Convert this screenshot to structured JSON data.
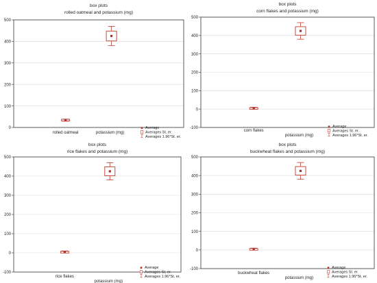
{
  "chart_data": [
    {
      "type": "box",
      "title": "box plots",
      "subtitle": "rolled oatmeal and potassium (mg)",
      "categories": [
        "rolled oatmeal",
        "potassium (mg)"
      ],
      "ylim": [
        0,
        500
      ],
      "yticks": [
        0,
        100,
        200,
        300,
        400,
        500
      ],
      "grid": true,
      "legend_placement": "bottom-right",
      "series": [
        {
          "category": "rolled oatmeal",
          "mean": 34,
          "se_low": 30,
          "se_high": 38,
          "ci_low": 29,
          "ci_high": 39
        },
        {
          "category": "potassium (mg)",
          "mean": 425,
          "se_low": 402,
          "se_high": 448,
          "ci_low": 380,
          "ci_high": 470
        }
      ]
    },
    {
      "type": "box",
      "title": "box plots",
      "subtitle": "corn flakes and potassium (mg)",
      "categories": [
        "corn flakes",
        "potassium (mg)"
      ],
      "ylim": [
        -100,
        500
      ],
      "yticks": [
        -100,
        0,
        100,
        200,
        300,
        400,
        500
      ],
      "grid": true,
      "legend_placement": "bottom-right",
      "series": [
        {
          "category": "corn flakes",
          "mean": 5,
          "se_low": 2,
          "se_high": 8,
          "ci_low": 0,
          "ci_high": 10
        },
        {
          "category": "potassium (mg)",
          "mean": 425,
          "se_low": 402,
          "se_high": 448,
          "ci_low": 380,
          "ci_high": 470
        }
      ]
    },
    {
      "type": "box",
      "title": "box plots",
      "subtitle": "rice flakes and potassium (mg)",
      "categories": [
        "rice flakes",
        "potassium (mg)"
      ],
      "ylim": [
        -100,
        500
      ],
      "yticks": [
        -100,
        0,
        100,
        200,
        300,
        400,
        500
      ],
      "grid": true,
      "legend_placement": "bottom-right",
      "series": [
        {
          "category": "rice flakes",
          "mean": 5,
          "se_low": 2,
          "se_high": 8,
          "ci_low": 0,
          "ci_high": 10
        },
        {
          "category": "potassium (mg)",
          "mean": 425,
          "se_low": 402,
          "se_high": 448,
          "ci_low": 380,
          "ci_high": 470
        }
      ]
    },
    {
      "type": "box",
      "title": "box plots",
      "subtitle": "buckwheat flakes and potassium (mg)",
      "categories": [
        "buckwheat flakes",
        "potassium (mg)"
      ],
      "ylim": [
        -100,
        500
      ],
      "yticks": [
        -100,
        0,
        100,
        200,
        300,
        400,
        500
      ],
      "grid": true,
      "legend_placement": "bottom-right",
      "series": [
        {
          "category": "buckwheat flakes",
          "mean": 5,
          "se_low": 2,
          "se_high": 8,
          "ci_low": 0,
          "ci_high": 10
        },
        {
          "category": "potassium (mg)",
          "mean": 425,
          "se_low": 402,
          "se_high": 448,
          "ci_low": 380,
          "ci_high": 470
        }
      ]
    }
  ],
  "legend": {
    "average": "Average",
    "se": "Averages St. er.",
    "ci": "Averages 1.96*St. er."
  },
  "colors": {
    "box": "#c0392b",
    "marker": "#b03030",
    "axis": "#333333",
    "grid": "#dcdcdc",
    "text": "#222222"
  }
}
